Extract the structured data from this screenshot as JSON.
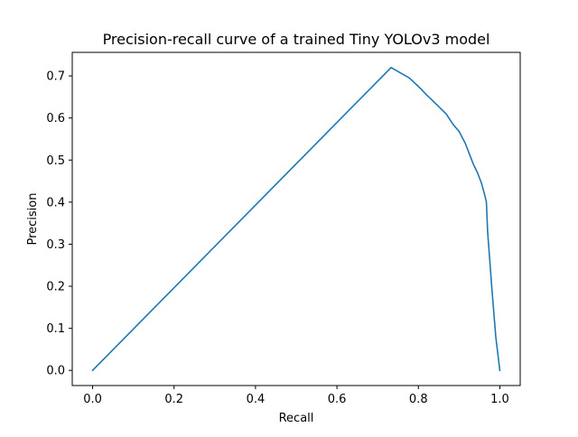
{
  "chart_data": {
    "type": "line",
    "title": "Precision-recall curve of a trained Tiny YOLOv3 model",
    "xlabel": "Recall",
    "ylabel": "Precision",
    "xlim": [
      -0.05,
      1.05
    ],
    "ylim": [
      -0.036,
      0.756
    ],
    "xticks": [
      0.0,
      0.2,
      0.4,
      0.6,
      0.8,
      1.0
    ],
    "xtick_labels": [
      "0.0",
      "0.2",
      "0.4",
      "0.6",
      "0.8",
      "1.0"
    ],
    "yticks": [
      0.0,
      0.1,
      0.2,
      0.3,
      0.4,
      0.5,
      0.6,
      0.7
    ],
    "ytick_labels": [
      "0.0",
      "0.1",
      "0.2",
      "0.3",
      "0.4",
      "0.5",
      "0.6",
      "0.7"
    ],
    "grid": false,
    "series": [
      {
        "color": "#1f77b4",
        "x": [
          0.0,
          0.733,
          0.778,
          0.8,
          0.82,
          0.845,
          0.868,
          0.885,
          0.9,
          0.915,
          0.925,
          0.935,
          0.945,
          0.955,
          0.962,
          0.967,
          0.97,
          0.98,
          0.99,
          1.0
        ],
        "y": [
          0.0,
          0.72,
          0.695,
          0.675,
          0.655,
          0.632,
          0.61,
          0.585,
          0.568,
          0.54,
          0.515,
          0.49,
          0.47,
          0.445,
          0.42,
          0.4,
          0.33,
          0.2,
          0.08,
          0.0
        ]
      }
    ]
  }
}
